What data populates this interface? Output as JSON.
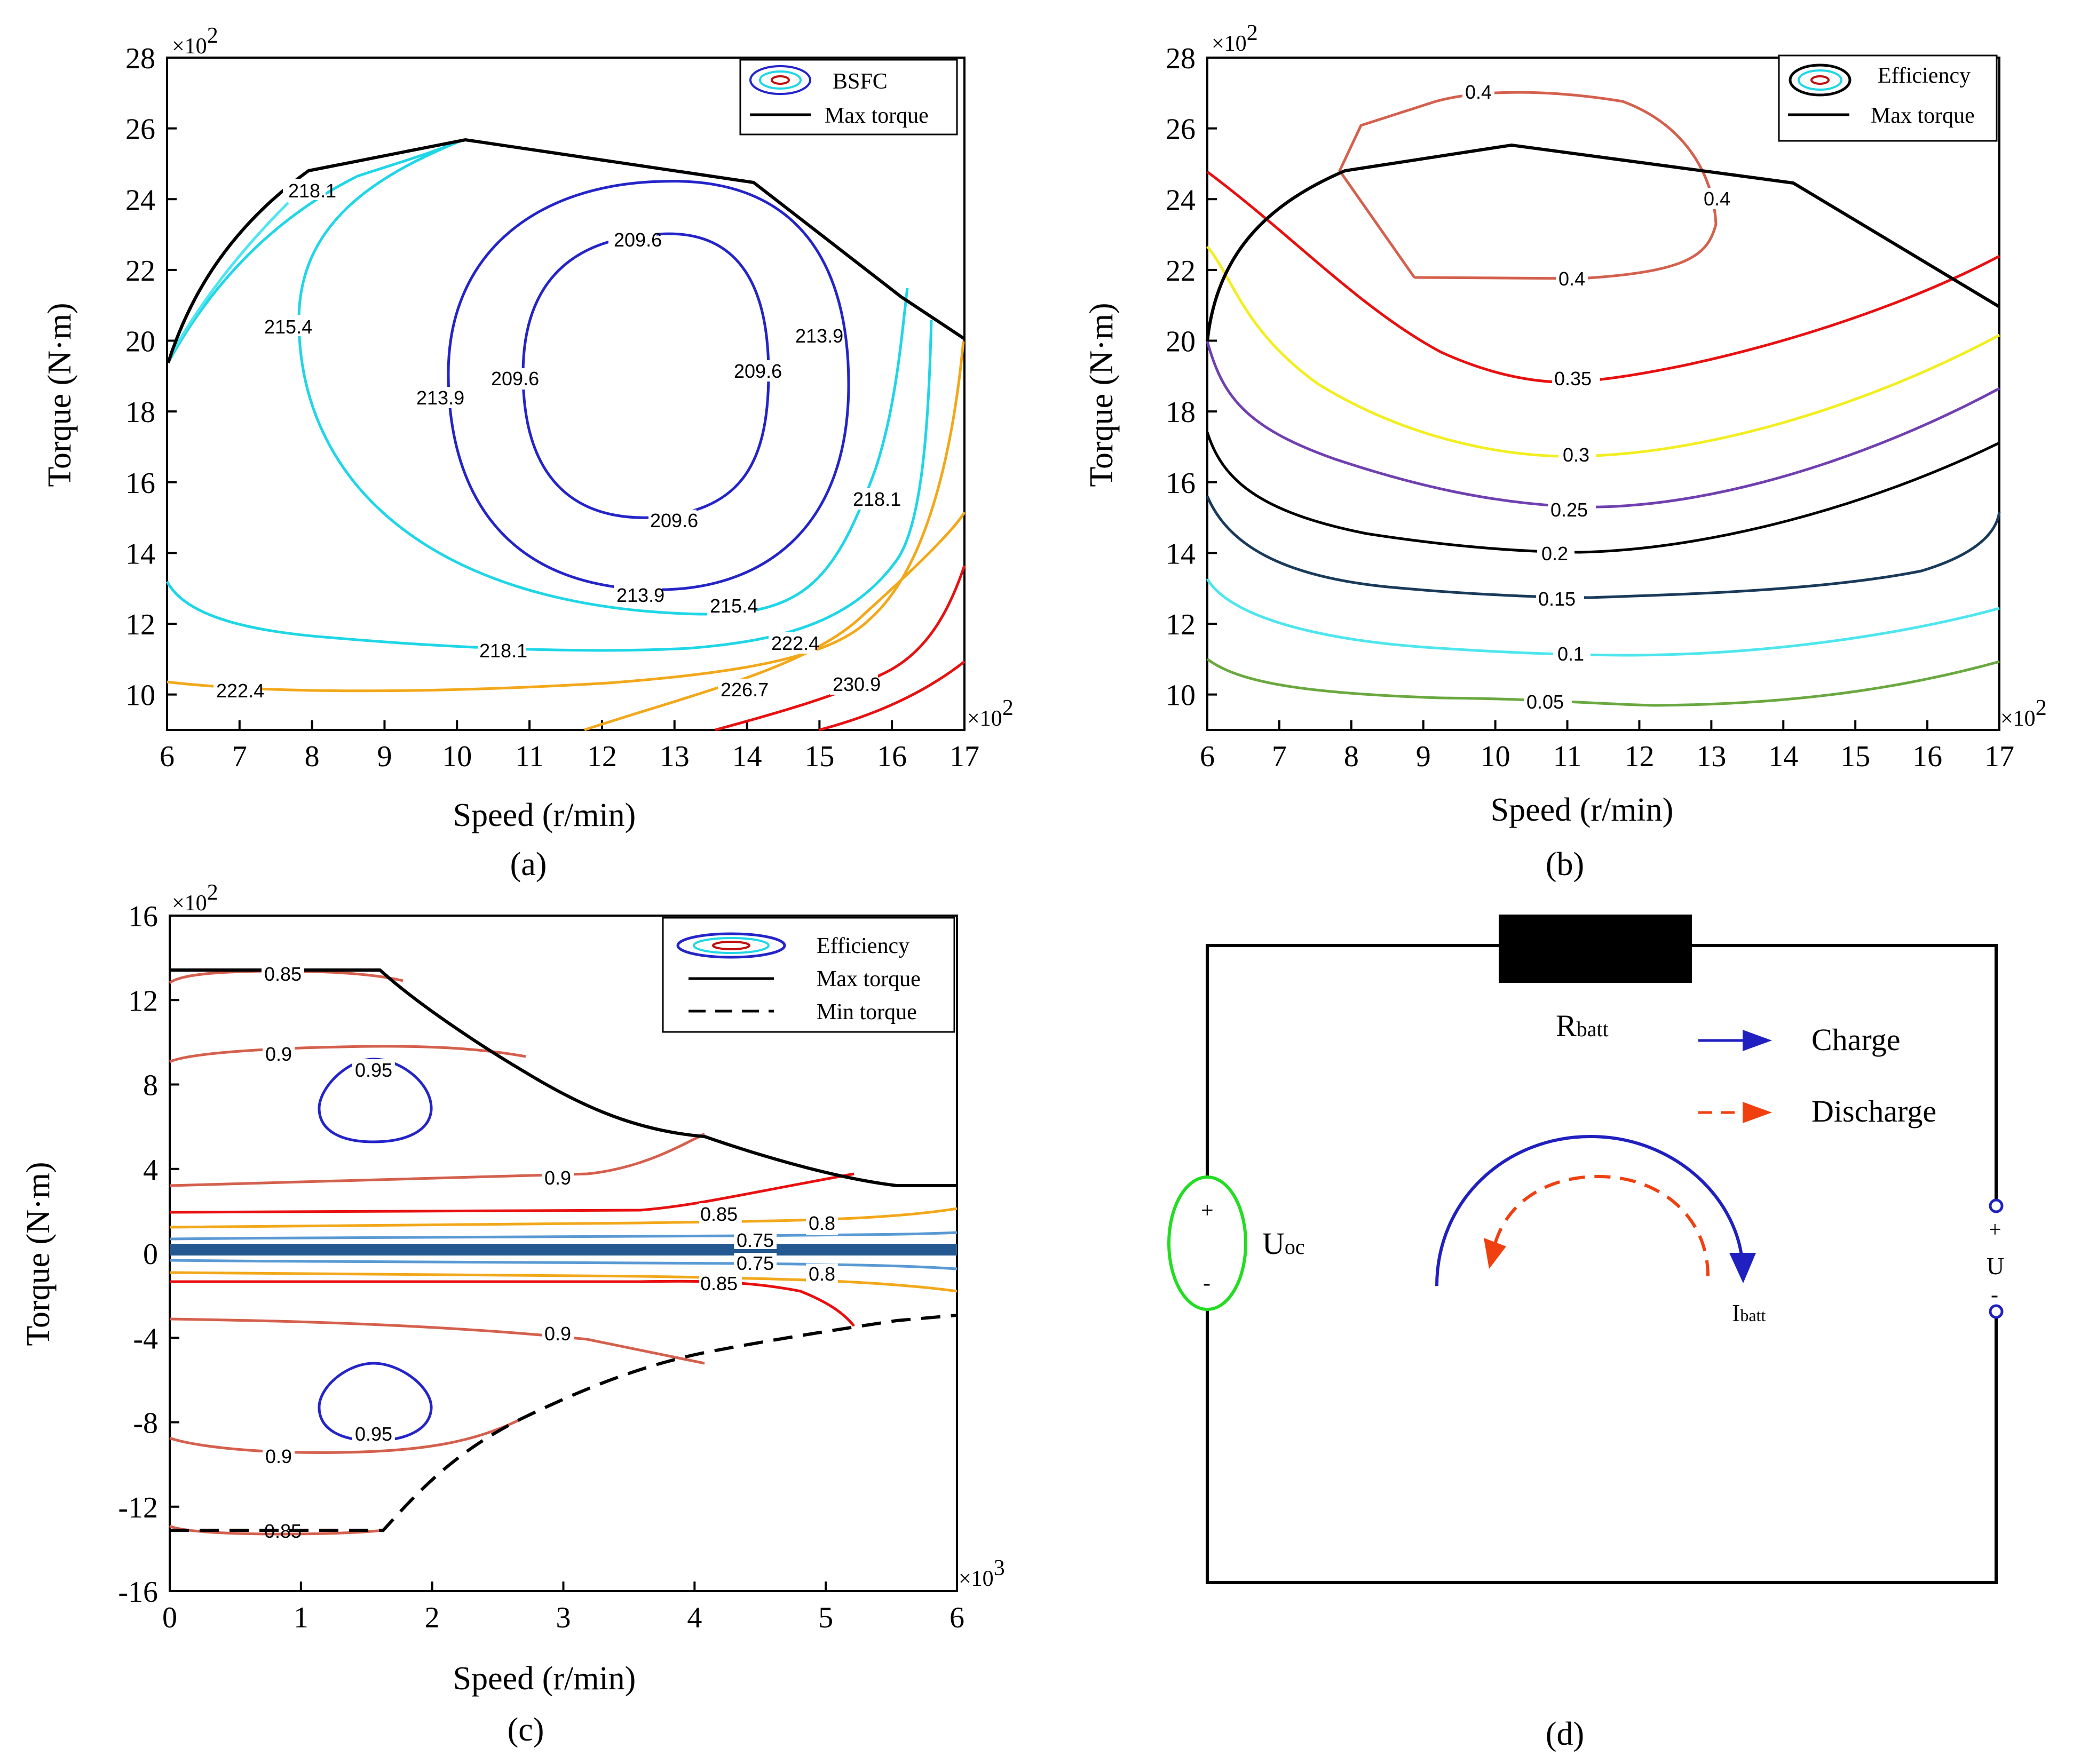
{
  "panels": {
    "a": {
      "label": "(a)",
      "xlabel": "Speed (r/min)",
      "ylabel": "Torque (N·m)",
      "x_ticks": [
        "6",
        "7",
        "8",
        "9",
        "10",
        "11",
        "12",
        "13",
        "14",
        "15",
        "16",
        "17"
      ],
      "y_ticks": [
        "10",
        "12",
        "14",
        "16",
        "18",
        "20",
        "22",
        "24",
        "26",
        "28"
      ],
      "x_multiplier": "×10",
      "x_multiplier_exp": "2",
      "y_multiplier": "×10",
      "y_multiplier_exp": "2",
      "legend": {
        "contour": "BSFC",
        "line": "Max torque"
      },
      "contour_labels": [
        "218.1",
        "215.4",
        "209.6",
        "209.6",
        "209.6",
        "209.6",
        "213.9",
        "213.9",
        "213.9",
        "218.1",
        "215.4",
        "218.1",
        "222.4",
        "222.4",
        "226.7",
        "230.9"
      ]
    },
    "b": {
      "label": "(b)",
      "xlabel": "Speed (r/min)",
      "ylabel": "Torque (N·m)",
      "x_ticks": [
        "6",
        "7",
        "8",
        "9",
        "10",
        "11",
        "12",
        "13",
        "14",
        "15",
        "16",
        "17"
      ],
      "y_ticks": [
        "10",
        "12",
        "14",
        "16",
        "18",
        "20",
        "22",
        "24",
        "26",
        "28"
      ],
      "x_multiplier": "×10",
      "x_multiplier_exp": "2",
      "y_multiplier": "×10",
      "y_multiplier_exp": "2",
      "legend": {
        "contour": "Efficiency",
        "line": "Max torque"
      },
      "contour_labels": [
        "0.4",
        "0.4",
        "0.4",
        "0.35",
        "0.3",
        "0.25",
        "0.2",
        "0.15",
        "0.1",
        "0.05"
      ]
    },
    "c": {
      "label": "(c)",
      "xlabel": "Speed (r/min)",
      "ylabel": "Torque (N·m)",
      "x_ticks": [
        "0",
        "1",
        "2",
        "3",
        "4",
        "5",
        "6"
      ],
      "y_ticks": [
        "16",
        "12",
        "8",
        "4",
        "0",
        "-4",
        "-8",
        "-12",
        "-16"
      ],
      "x_multiplier": "×10",
      "x_multiplier_exp": "3",
      "y_multiplier": "×10",
      "y_multiplier_exp": "2",
      "legend": {
        "contour": "Efficiency",
        "line": "Max torque",
        "dashed": "Min torque"
      },
      "contour_labels": [
        "0.85",
        "0.9",
        "0.95",
        "0.9",
        "0.85",
        "0.8",
        "0.75",
        "0.75",
        "0.8",
        "0.85",
        "0.9",
        "0.95",
        "0.9",
        "0.85"
      ]
    },
    "d": {
      "label": "(d)",
      "resistor": "R",
      "resistor_sub": "batt",
      "source": "U",
      "source_sub": "oc",
      "source_plus": "+",
      "source_minus": "-",
      "terminal_plus": "+",
      "terminal_u": "U",
      "terminal_minus": "-",
      "current": "I",
      "current_sub": "batt",
      "legend_charge": "Charge",
      "legend_discharge": "Discharge"
    }
  },
  "colors": {
    "blue": "#2424c8",
    "cyan": "#1fd6e6",
    "lightcyan": "#4ee6ee",
    "orange": "#f2a81a",
    "red": "#e81010",
    "salmon": "#d4604e",
    "yellow": "#f2ee20",
    "purple": "#7040b0",
    "navy": "#1a3a5a",
    "green": "#6aa840",
    "steel": "#245890",
    "charge": "#2020c0",
    "discharge": "#f04010",
    "source": "#22dd22"
  },
  "chart_data": [
    {
      "type": "contour",
      "panel": "a",
      "title": "",
      "xlabel": "Speed (r/min)",
      "ylabel": "Torque (N·m)",
      "x_scale": 100,
      "y_scale": 100,
      "xlim": [
        6,
        17
      ],
      "ylim": [
        9,
        28
      ],
      "levels": [
        209.6,
        213.9,
        215.4,
        218.1,
        222.4,
        226.7,
        230.9
      ],
      "max_torque": {
        "x": [
          6,
          7.8,
          10,
          14,
          17
        ],
        "y": [
          19.5,
          24.8,
          25.6,
          24.5,
          20
        ]
      }
    },
    {
      "type": "contour",
      "panel": "b",
      "title": "",
      "xlabel": "Speed (r/min)",
      "ylabel": "Torque (N·m)",
      "x_scale": 100,
      "y_scale": 100,
      "xlim": [
        6,
        17
      ],
      "ylim": [
        9,
        28
      ],
      "levels": [
        0.05,
        0.1,
        0.15,
        0.2,
        0.25,
        0.3,
        0.35,
        0.4
      ],
      "max_torque": {
        "x": [
          6,
          7.8,
          10.1,
          14,
          17
        ],
        "y": [
          20,
          24.8,
          25.6,
          24.5,
          21
        ]
      }
    },
    {
      "type": "contour",
      "panel": "c",
      "title": "",
      "xlabel": "Speed (r/min)",
      "ylabel": "Torque (N·m)",
      "x_scale": 1000,
      "y_scale": 100,
      "xlim": [
        0,
        6
      ],
      "ylim": [
        -16,
        16
      ],
      "levels": [
        0.75,
        0.8,
        0.85,
        0.9,
        0.95
      ],
      "max_torque": {
        "x": [
          0,
          1.55,
          2,
          3,
          4,
          5,
          5.8,
          6
        ],
        "y": [
          13.3,
          13.3,
          11.4,
          8,
          5.4,
          3.7,
          3.1,
          3.1
        ]
      },
      "min_torque": {
        "x": [
          0,
          1.55,
          2,
          2.7,
          4,
          5,
          6
        ],
        "y": [
          -13.1,
          -13.1,
          -10.5,
          -7.8,
          -4.8,
          -3.7,
          -3
        ]
      }
    }
  ]
}
